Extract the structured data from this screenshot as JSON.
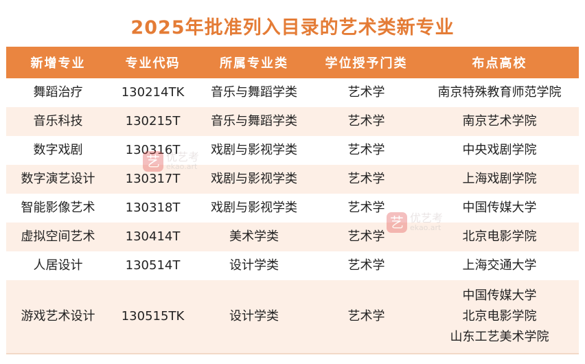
{
  "title": "2025年批准列入目录的艺术类新专业",
  "theme": {
    "header_bg": "#ea8540",
    "title_color": "#e47c36",
    "alt_row_bg": "#fdefe6"
  },
  "columns": [
    "新增专业",
    "专业代码",
    "所属专业类",
    "学位授予门类",
    "布点高校"
  ],
  "rows": [
    {
      "major": "舞蹈治疗",
      "code": "130214TK",
      "category": "音乐与舞蹈学类",
      "degree": "艺术学",
      "schools": [
        "南京特殊教育师范学院"
      ]
    },
    {
      "major": "音乐科技",
      "code": "130215T",
      "category": "音乐与舞蹈学类",
      "degree": "艺术学",
      "schools": [
        "南京艺术学院"
      ]
    },
    {
      "major": "数字戏剧",
      "code": "130316T",
      "category": "戏剧与影视学类",
      "degree": "艺术学",
      "schools": [
        "中央戏剧学院"
      ]
    },
    {
      "major": "数字演艺设计",
      "code": "130317T",
      "category": "戏剧与影视学类",
      "degree": "艺术学",
      "schools": [
        "上海戏剧学院"
      ]
    },
    {
      "major": "智能影像艺术",
      "code": "130318T",
      "category": "戏剧与影视学类",
      "degree": "艺术学",
      "schools": [
        "中国传媒大学"
      ]
    },
    {
      "major": "虚拟空间艺术",
      "code": "130414T",
      "category": "美术学类",
      "degree": "艺术学",
      "schools": [
        "北京电影学院"
      ]
    },
    {
      "major": "人居设计",
      "code": "130514T",
      "category": "设计学类",
      "degree": "艺术学",
      "schools": [
        "上海交通大学"
      ]
    },
    {
      "major": "游戏艺术设计",
      "code": "130515TK",
      "category": "设计学类",
      "degree": "艺术学",
      "schools": [
        "中国传媒大学",
        "北京电影学院",
        "山东工艺美术学院"
      ]
    }
  ],
  "watermark": {
    "logo_char": "艺",
    "name": "优艺考",
    "domain": "ekao.art"
  }
}
